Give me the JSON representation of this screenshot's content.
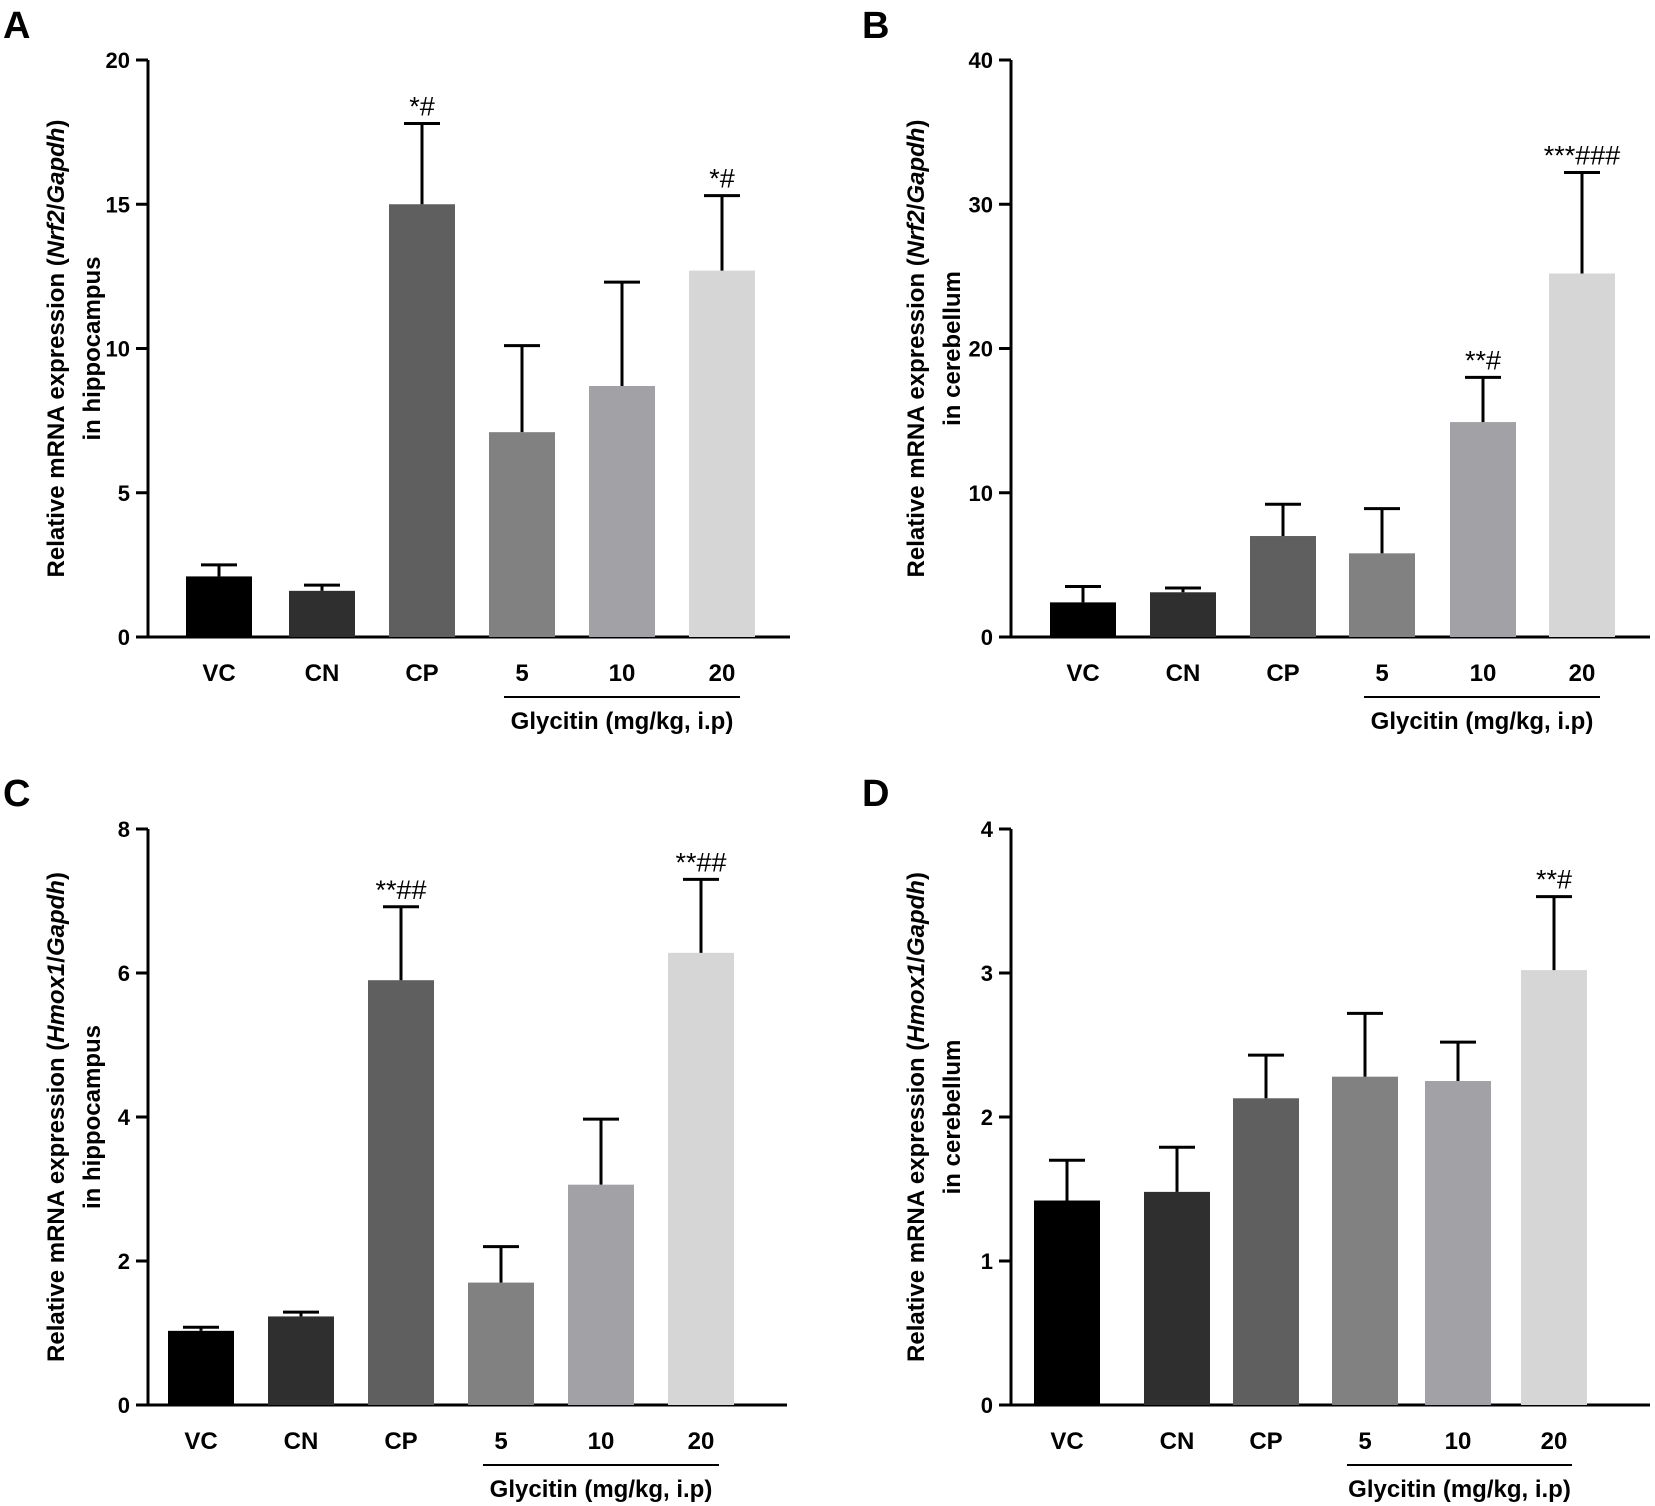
{
  "chart_data": [
    {
      "type": "bar",
      "panel": "A",
      "ylabel_line1_pre": "Relative mRNA expression (",
      "ylabel_gene": "Nrf2",
      "ylabel_sep": "/",
      "ylabel_ref": "Gapdh",
      "ylabel_line1_post": ")",
      "ylabel_line2": "in hippocampus",
      "ylim": [
        0,
        20
      ],
      "yticks": [
        0,
        5,
        10,
        15,
        20
      ],
      "categories": [
        "VC",
        "CN",
        "CP",
        "5",
        "10",
        "20"
      ],
      "values": [
        2.1,
        1.6,
        15.0,
        7.1,
        8.7,
        12.7
      ],
      "errors": [
        0.4,
        0.2,
        2.8,
        3.0,
        3.6,
        2.6
      ],
      "annotations": [
        "",
        "",
        "*#",
        "",
        "",
        "*#"
      ],
      "colors": [
        "#000000",
        "#2f2f2f",
        "#5f5f5f",
        "#818181",
        "#a2a2a6",
        "#d6d6d6"
      ],
      "group_label": "Glycitin (mg/kg, i.p)",
      "group_start": 3
    },
    {
      "type": "bar",
      "panel": "B",
      "ylabel_line1_pre": "Relative mRNA expression (",
      "ylabel_gene": "Nrf2",
      "ylabel_sep": "/",
      "ylabel_ref": "Gapdh",
      "ylabel_line1_post": ")",
      "ylabel_line2": "in cerebellum",
      "ylim": [
        0,
        40
      ],
      "yticks": [
        0,
        10,
        20,
        30,
        40
      ],
      "categories": [
        "VC",
        "CN",
        "CP",
        "5",
        "10",
        "20"
      ],
      "values": [
        2.4,
        3.1,
        7.0,
        5.8,
        14.9,
        25.2
      ],
      "errors": [
        1.1,
        0.3,
        2.2,
        3.1,
        3.1,
        7.0
      ],
      "annotations": [
        "",
        "",
        "",
        "",
        "**#",
        "***###"
      ],
      "colors": [
        "#000000",
        "#2f2f2f",
        "#5f5f5f",
        "#818181",
        "#a2a2a6",
        "#d6d6d6"
      ],
      "group_label": "Glycitin (mg/kg, i.p)",
      "group_start": 3
    },
    {
      "type": "bar",
      "panel": "C",
      "ylabel_line1_pre": "Relative mRNA expression (",
      "ylabel_gene": "Hmox1",
      "ylabel_sep": "/",
      "ylabel_ref": "Gapdh",
      "ylabel_line1_post": ")",
      "ylabel_line2": "in hippocampus",
      "ylim": [
        0,
        8
      ],
      "yticks": [
        0,
        2,
        4,
        6,
        8
      ],
      "categories": [
        "VC",
        "CN",
        "CP",
        "5",
        "10",
        "20"
      ],
      "values": [
        1.03,
        1.23,
        5.9,
        1.7,
        3.06,
        6.28
      ],
      "errors": [
        0.05,
        0.06,
        1.02,
        0.5,
        0.91,
        1.02
      ],
      "annotations": [
        "",
        "",
        "**##",
        "",
        "",
        "**##"
      ],
      "colors": [
        "#000000",
        "#2f2f2f",
        "#5f5f5f",
        "#818181",
        "#a2a2a6",
        "#d6d6d6"
      ],
      "group_label": "Glycitin (mg/kg, i.p)",
      "group_start": 3
    },
    {
      "type": "bar",
      "panel": "D",
      "ylabel_line1_pre": "Relative mRNA expression (",
      "ylabel_gene": "Hmox1",
      "ylabel_sep": "/",
      "ylabel_ref": "Gapdh",
      "ylabel_line1_post": ")",
      "ylabel_line2": "in cerebellum",
      "ylim": [
        0,
        4
      ],
      "yticks": [
        0,
        1,
        2,
        3,
        4
      ],
      "categories": [
        "VC",
        "CN",
        "CP",
        "5",
        "10",
        "20"
      ],
      "values": [
        1.42,
        1.48,
        2.13,
        2.28,
        2.25,
        3.02
      ],
      "errors": [
        0.28,
        0.31,
        0.3,
        0.44,
        0.27,
        0.51
      ],
      "annotations": [
        "",
        "",
        "",
        "",
        "",
        "**#"
      ],
      "colors": [
        "#000000",
        "#2f2f2f",
        "#5f5f5f",
        "#818181",
        "#a2a2a6",
        "#d6d6d6"
      ],
      "group_label": "Glycitin (mg/kg, i.p)",
      "group_start": 3
    }
  ]
}
